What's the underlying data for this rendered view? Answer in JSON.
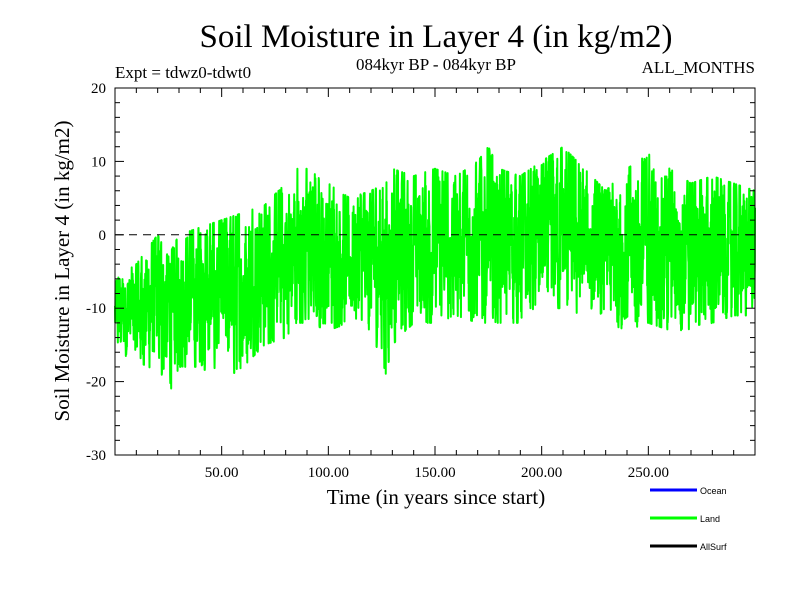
{
  "chart_data": {
    "type": "line",
    "title": "Soil Moisture in Layer 4 (in kg/m2)",
    "subtitle_left": "Expt = tdwz0-tdwt0",
    "subtitle_center": "084kyr BP - 084kyr BP",
    "subtitle_right": "ALL_MONTHS",
    "xlabel": "Time (in years since start)",
    "ylabel": "Soil Moisture in Layer 4 (in kg/m2)",
    "xlim": [
      0,
      300
    ],
    "ylim": [
      -30,
      20
    ],
    "x_ticks": [
      50,
      100,
      150,
      200,
      250
    ],
    "x_tick_labels": [
      "50.00",
      "100.00",
      "150.00",
      "200.00",
      "250.00"
    ],
    "y_ticks": [
      -30,
      -20,
      -10,
      0,
      10,
      20
    ],
    "y_tick_labels": [
      "-30",
      "-20",
      "-10",
      "0",
      "10",
      "20"
    ],
    "reference_line": {
      "y": 0,
      "style": "dashed"
    },
    "series": [
      {
        "name": "Land",
        "color": "#00ff00",
        "samples_per_year": 12,
        "envelope": {
          "x": [
            0,
            10,
            20,
            25,
            30,
            40,
            50,
            60,
            70,
            80,
            85,
            90,
            100,
            110,
            120,
            127,
            130,
            140,
            150,
            160,
            170,
            175,
            180,
            190,
            200,
            210,
            220,
            230,
            240,
            250,
            260,
            270,
            280,
            290,
            300
          ],
          "upper": [
            -6,
            -4,
            0,
            -3,
            0,
            1,
            2,
            3,
            4,
            7,
            9,
            9,
            7,
            5,
            6,
            7,
            9,
            8,
            9,
            8,
            10,
            12,
            9,
            8,
            10,
            12,
            9,
            6,
            9,
            11,
            9,
            7,
            8,
            7,
            6
          ],
          "lower": [
            -16,
            -17,
            -19,
            -22,
            -18,
            -18,
            -20,
            -18,
            -15,
            -14,
            -12,
            -12,
            -13,
            -12,
            -13,
            -19,
            -15,
            -12,
            -12,
            -11,
            -12,
            -12,
            -12,
            -12,
            -10,
            -10,
            -11,
            -12,
            -13,
            -12,
            -13,
            -13,
            -12,
            -11,
            -11
          ],
          "mean": [
            -11,
            -10,
            -9,
            -10,
            -8,
            -8,
            -8,
            -7,
            -5,
            -4,
            -2,
            -2,
            -3,
            -3,
            -3,
            -4,
            -2,
            -2,
            -1,
            -1,
            -1,
            0,
            -1,
            -1,
            0,
            1,
            -1,
            -2,
            -2,
            -1,
            -2,
            -2,
            -2,
            -2,
            -2
          ]
        }
      },
      {
        "name": "Ocean",
        "color": "#0000ff"
      },
      {
        "name": "AllSurf",
        "color": "#000000"
      }
    ],
    "legend": {
      "placement": "bottom-right",
      "entries": [
        "Ocean",
        "Land",
        "AllSurf"
      ]
    }
  }
}
